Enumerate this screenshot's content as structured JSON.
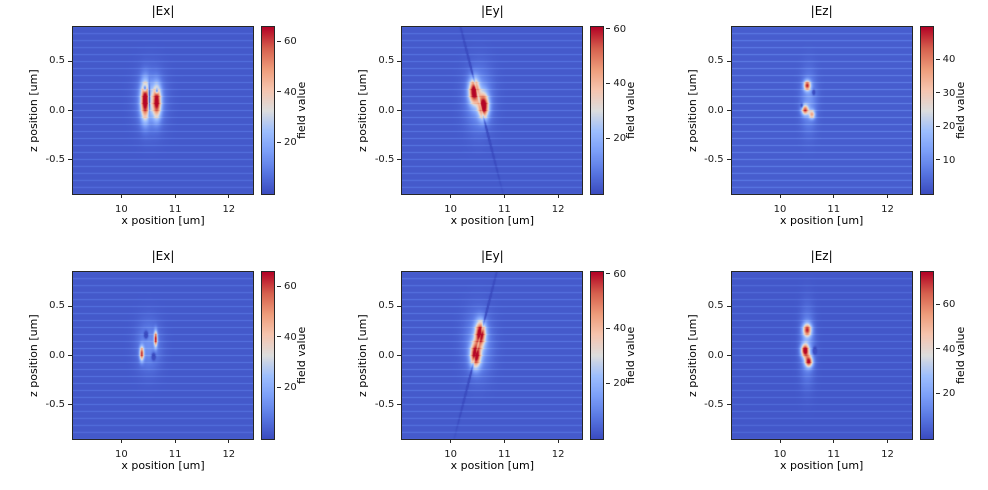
{
  "figure": {
    "rows": 2,
    "cols": 3,
    "background": "#ffffff"
  },
  "chart_data": [
    {
      "type": "heatmap",
      "title": "|Ex|",
      "xlabel": "x position [um]",
      "ylabel": "z position [um]",
      "colorbar_label": "field value",
      "colormap": "coolwarm",
      "xlim": [
        9.1,
        12.45
      ],
      "ylim": [
        -0.85,
        0.85
      ],
      "xticks": [
        10,
        11,
        12
      ],
      "yticks": [
        0.5,
        0.0,
        -0.5
      ],
      "vmin": 0,
      "vmax": 66,
      "colorbar_ticks": [
        20,
        40,
        60
      ],
      "background": {
        "base": 2.5,
        "stripes": {
          "period": 0.071,
          "amplitude": 5.5,
          "sharpness": 8,
          "offset": 0.0
        }
      },
      "hotspots": [
        {
          "x": 10.44,
          "z": 0.1,
          "sx": 0.055,
          "sz": 0.13,
          "a": 60
        },
        {
          "x": 10.66,
          "z": 0.09,
          "sx": 0.055,
          "sz": 0.11,
          "a": 57
        },
        {
          "x": 10.55,
          "z": 0.1,
          "sx": 0.17,
          "sz": 0.19,
          "a": 16
        },
        {
          "x": 10.52,
          "z": 0.12,
          "sx": 0.012,
          "sz": 0.09,
          "a": -45
        },
        {
          "x": 10.44,
          "z": 0.225,
          "sx": 0.02,
          "sz": 0.02,
          "a": -40
        },
        {
          "x": 10.66,
          "z": 0.2,
          "sx": 0.018,
          "sz": 0.018,
          "a": -35
        }
      ]
    },
    {
      "type": "heatmap",
      "title": "|Ey|",
      "xlabel": "x position [um]",
      "ylabel": "z position [um]",
      "colorbar_label": "field value",
      "colormap": "coolwarm",
      "xlim": [
        9.1,
        12.45
      ],
      "ylim": [
        -0.85,
        0.85
      ],
      "xticks": [
        10,
        11,
        12
      ],
      "yticks": [
        0.5,
        0.0,
        -0.5
      ],
      "vmin": 0,
      "vmax": 61,
      "colorbar_ticks": [
        20,
        40,
        60
      ],
      "background": {
        "base": 2.5,
        "stripes": {
          "period": 0.071,
          "amplitude": 5.5,
          "sharpness": 8,
          "offset": 0.0
        }
      },
      "hotspots": [
        {
          "x": 10.44,
          "z": 0.195,
          "sx": 0.065,
          "sz": 0.085,
          "a": 57
        },
        {
          "x": 10.62,
          "z": 0.045,
          "sx": 0.065,
          "sz": 0.085,
          "a": 59
        },
        {
          "x": 10.53,
          "z": 0.12,
          "sx": 0.17,
          "sz": 0.21,
          "a": 13
        },
        {
          "x": 10.53,
          "z": 0.12,
          "sx": 0.012,
          "sz": 0.45,
          "a": -16,
          "rot": 25
        }
      ]
    },
    {
      "type": "heatmap",
      "title": "|Ez|",
      "xlabel": "x position [um]",
      "ylabel": "z position [um]",
      "colorbar_label": "field value",
      "colormap": "coolwarm",
      "xlim": [
        9.1,
        12.45
      ],
      "ylim": [
        -0.85,
        0.85
      ],
      "xticks": [
        10,
        11,
        12
      ],
      "yticks": [
        0.5,
        0.0,
        -0.5
      ],
      "vmin": 0,
      "vmax": 50,
      "colorbar_ticks": [
        10,
        20,
        30,
        40
      ],
      "background": {
        "base": 2.5,
        "stripes": {
          "period": 0.071,
          "amplitude": 5.5,
          "sharpness": 8,
          "offset": 0.0
        }
      },
      "hotspots": [
        {
          "x": 10.5,
          "z": 0.255,
          "sx": 0.045,
          "sz": 0.035,
          "a": 40
        },
        {
          "x": 10.46,
          "z": 0.005,
          "sx": 0.045,
          "sz": 0.035,
          "a": 36
        },
        {
          "x": 10.59,
          "z": -0.04,
          "sx": 0.04,
          "sz": 0.03,
          "a": 28
        },
        {
          "x": 10.53,
          "z": 0.1,
          "sx": 0.1,
          "sz": 0.2,
          "a": 9
        },
        {
          "x": 10.62,
          "z": 0.185,
          "sx": 0.018,
          "sz": 0.018,
          "a": -16
        },
        {
          "x": 10.4,
          "z": 0.05,
          "sx": 0.016,
          "sz": 0.016,
          "a": -14
        }
      ]
    },
    {
      "type": "heatmap",
      "title": "|Ex|",
      "xlabel": "x position [um]",
      "ylabel": "z position [um]",
      "colorbar_label": "field value",
      "colormap": "coolwarm",
      "xlim": [
        9.1,
        12.45
      ],
      "ylim": [
        -0.85,
        0.85
      ],
      "xticks": [
        10,
        11,
        12
      ],
      "yticks": [
        0.5,
        0.0,
        -0.5
      ],
      "vmin": 0,
      "vmax": 66,
      "colorbar_ticks": [
        20,
        40,
        60
      ],
      "background": {
        "base": 2.5,
        "stripes": {
          "period": 0.071,
          "amplitude": 5.5,
          "sharpness": 8,
          "offset": 0.0
        }
      },
      "hotspots": [
        {
          "x": 10.64,
          "z": 0.17,
          "sx": 0.022,
          "sz": 0.055,
          "a": 58
        },
        {
          "x": 10.38,
          "z": 0.02,
          "sx": 0.028,
          "sz": 0.05,
          "a": 54
        },
        {
          "x": 10.51,
          "z": 0.1,
          "sx": 0.15,
          "sz": 0.17,
          "a": 11
        },
        {
          "x": 10.46,
          "z": 0.21,
          "sx": 0.024,
          "sz": 0.024,
          "a": -26
        },
        {
          "x": 10.6,
          "z": -0.01,
          "sx": 0.024,
          "sz": 0.024,
          "a": -24
        }
      ]
    },
    {
      "type": "heatmap",
      "title": "|Ey|",
      "xlabel": "x position [um]",
      "ylabel": "z position [um]",
      "colorbar_label": "field value",
      "colormap": "coolwarm",
      "xlim": [
        9.1,
        12.45
      ],
      "ylim": [
        -0.85,
        0.85
      ],
      "xticks": [
        10,
        11,
        12
      ],
      "yticks": [
        0.5,
        0.0,
        -0.5
      ],
      "vmin": 0,
      "vmax": 61,
      "colorbar_ticks": [
        20,
        40,
        60
      ],
      "background": {
        "base": 2.5,
        "stripes": {
          "period": 0.071,
          "amplitude": 5.5,
          "sharpness": 8,
          "offset": 0.0
        }
      },
      "hotspots": [
        {
          "x": 10.56,
          "z": 0.225,
          "sx": 0.065,
          "sz": 0.085,
          "a": 58
        },
        {
          "x": 10.47,
          "z": 0.005,
          "sx": 0.065,
          "sz": 0.085,
          "a": 59
        },
        {
          "x": 10.52,
          "z": 0.115,
          "sx": 0.17,
          "sz": 0.21,
          "a": 13
        },
        {
          "x": 10.52,
          "z": 0.115,
          "sx": 0.012,
          "sz": 0.45,
          "a": -16,
          "rot": -25
        }
      ]
    },
    {
      "type": "heatmap",
      "title": "|Ez|",
      "xlabel": "x position [um]",
      "ylabel": "z position [um]",
      "colorbar_label": "field value",
      "colormap": "coolwarm",
      "xlim": [
        9.1,
        12.45
      ],
      "ylim": [
        -0.85,
        0.85
      ],
      "xticks": [
        10,
        11,
        12
      ],
      "yticks": [
        0.5,
        0.0,
        -0.5
      ],
      "vmin": 0,
      "vmax": 75,
      "colorbar_ticks": [
        20,
        40,
        60
      ],
      "background": {
        "base": 2.5,
        "stripes": {
          "period": 0.071,
          "amplitude": 5.5,
          "sharpness": 8,
          "offset": 0.0
        }
      },
      "hotspots": [
        {
          "x": 10.5,
          "z": 0.26,
          "sx": 0.055,
          "sz": 0.045,
          "a": 58
        },
        {
          "x": 10.46,
          "z": 0.05,
          "sx": 0.05,
          "sz": 0.045,
          "a": 68
        },
        {
          "x": 10.53,
          "z": -0.06,
          "sx": 0.05,
          "sz": 0.04,
          "a": 62
        },
        {
          "x": 10.5,
          "z": 0.1,
          "sx": 0.09,
          "sz": 0.24,
          "a": 16
        },
        {
          "x": 10.64,
          "z": 0.05,
          "sx": 0.022,
          "sz": 0.022,
          "a": -30
        }
      ]
    }
  ]
}
